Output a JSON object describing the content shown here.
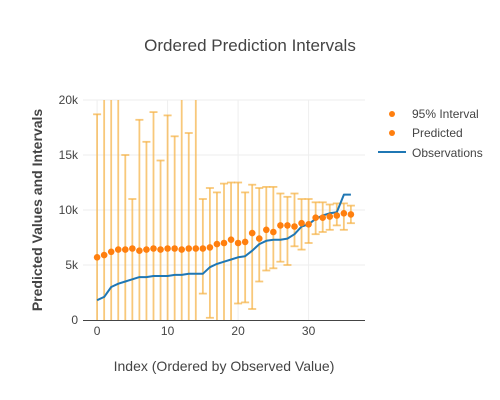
{
  "chart_data": {
    "type": "scatter",
    "title": "Ordered Prediction Intervals",
    "xlabel": "Index (Ordered by Observed Value)",
    "ylabel": "Predicted Values and Intervals",
    "xlim": [
      -2,
      38
    ],
    "ylim": [
      0,
      20000
    ],
    "x_ticks": [
      0,
      10,
      20,
      30
    ],
    "y_ticks": [
      {
        "value": 0,
        "label": "0"
      },
      {
        "value": 5000,
        "label": "5k"
      },
      {
        "value": 10000,
        "label": "10k"
      },
      {
        "value": 15000,
        "label": "15k"
      },
      {
        "value": 20000,
        "label": "20k"
      }
    ],
    "grid": true,
    "legend_position": "top-right",
    "x": [
      0,
      1,
      2,
      3,
      4,
      5,
      6,
      7,
      8,
      9,
      10,
      11,
      12,
      13,
      14,
      15,
      16,
      17,
      18,
      19,
      20,
      21,
      22,
      23,
      24,
      25,
      26,
      27,
      28,
      29,
      30,
      31,
      32,
      33,
      34,
      35,
      36
    ],
    "series": [
      {
        "name": "95% Interval",
        "kind": "error_bars",
        "color": "#f5b041",
        "lower": [
          -3300,
          -2000,
          -1200,
          -3000,
          -3500,
          -2000,
          -3500,
          -1800,
          -3500,
          -1000,
          -3500,
          -3500,
          -3800,
          -900,
          -1100,
          2400,
          200,
          -400,
          -700,
          -900,
          1500,
          1600,
          1000,
          3500,
          4500,
          4700,
          5300,
          5000,
          6700,
          6400,
          7000,
          7800,
          8000,
          8200,
          8600,
          8200,
          8800
        ],
        "upper": [
          18700,
          20500,
          27000,
          20100,
          15000,
          11000,
          18200,
          16200,
          18900,
          14500,
          18600,
          16700,
          27000,
          17000,
          24000,
          11000,
          12000,
          11600,
          12400,
          12500,
          12500,
          11600,
          12300,
          12000,
          12100,
          12100,
          11500,
          11200,
          11500,
          11000,
          11000,
          10700,
          10700,
          10500,
          10600,
          10600,
          10400
        ]
      },
      {
        "name": "Predicted",
        "kind": "markers",
        "color": "#ff7f0e",
        "values": [
          5700,
          5900,
          6200,
          6400,
          6400,
          6500,
          6300,
          6400,
          6500,
          6400,
          6500,
          6500,
          6400,
          6500,
          6500,
          6500,
          6600,
          6900,
          7000,
          7300,
          7000,
          7100,
          7900,
          7400,
          8200,
          8000,
          8600,
          8600,
          8500,
          8800,
          8700,
          9300,
          9300,
          9400,
          9500,
          9700,
          9600
        ]
      },
      {
        "name": "Observations",
        "kind": "line",
        "color": "#1f77b4",
        "values": [
          1800,
          2100,
          3000,
          3300,
          3500,
          3700,
          3900,
          3900,
          4000,
          4000,
          4000,
          4100,
          4100,
          4200,
          4200,
          4200,
          4800,
          5100,
          5300,
          5500,
          5700,
          5800,
          6300,
          6900,
          7200,
          7300,
          7300,
          7400,
          7800,
          8500,
          8700,
          9200,
          9500,
          9700,
          9800,
          11400,
          11400
        ]
      }
    ]
  }
}
